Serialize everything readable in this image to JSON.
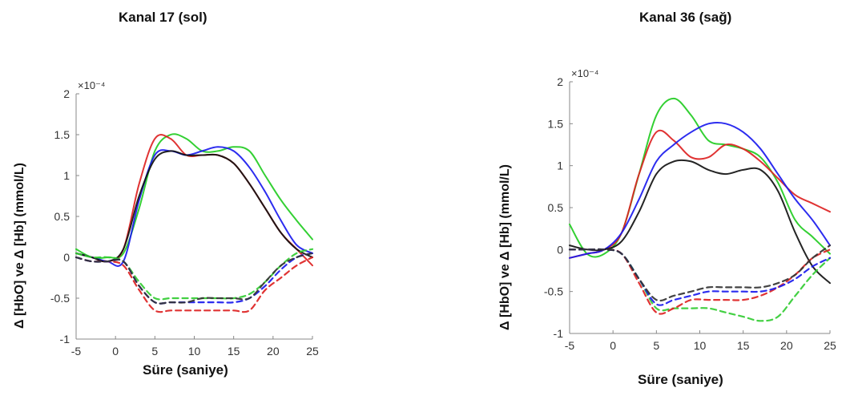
{
  "chart_data": [
    {
      "type": "line",
      "title": "Kanal 17 (sol)",
      "xlabel": "Süre (saniye)",
      "ylabel": "Δ [HbO] ve Δ [Hb] (mmol/L)",
      "y_exponent": "×10⁻⁴",
      "xlim": [
        -5,
        25
      ],
      "ylim": [
        -1,
        2
      ],
      "xticks": [
        -5,
        0,
        5,
        10,
        15,
        20,
        25
      ],
      "yticks": [
        -1,
        -0.5,
        0,
        0.5,
        1,
        1.5,
        2
      ],
      "grid": false,
      "series": [
        {
          "style": "solid",
          "color": "#22cc22",
          "x": [
            -5,
            -3,
            -1,
            1,
            3,
            5,
            7,
            9,
            11,
            13,
            15,
            17,
            19,
            21,
            23,
            25
          ],
          "y": [
            0.1,
            0,
            0,
            0.05,
            0.6,
            1.3,
            1.5,
            1.45,
            1.3,
            1.3,
            1.35,
            1.3,
            1.0,
            0.7,
            0.45,
            0.22
          ]
        },
        {
          "style": "solid",
          "color": "#dd2222",
          "x": [
            -5,
            -3,
            -1,
            1,
            3,
            5,
            7,
            9,
            11,
            13,
            15,
            17,
            19,
            21,
            23,
            25
          ],
          "y": [
            0.05,
            0,
            -0.05,
            0.1,
            0.9,
            1.45,
            1.45,
            1.25,
            1.25,
            1.25,
            1.15,
            0.9,
            0.6,
            0.3,
            0.1,
            -0.1
          ]
        },
        {
          "style": "solid",
          "color": "#1a1aee",
          "x": [
            -5,
            -3,
            -1,
            1,
            3,
            5,
            7,
            9,
            11,
            13,
            15,
            17,
            19,
            21,
            23,
            25
          ],
          "y": [
            0.05,
            0,
            -0.05,
            -0.05,
            0.7,
            1.25,
            1.3,
            1.25,
            1.3,
            1.35,
            1.3,
            1.1,
            0.8,
            0.45,
            0.15,
            0.05
          ]
        },
        {
          "style": "solid",
          "color": "#111111",
          "x": [
            -5,
            -3,
            -1,
            1,
            3,
            5,
            7,
            9,
            11,
            13,
            15,
            17,
            19,
            21,
            23,
            25
          ],
          "y": [
            0.05,
            0,
            -0.05,
            0.1,
            0.75,
            1.2,
            1.3,
            1.25,
            1.25,
            1.25,
            1.15,
            0.9,
            0.6,
            0.3,
            0.1,
            0.0
          ]
        },
        {
          "style": "dashed",
          "color": "#33cc33",
          "x": [
            -5,
            -3,
            -1,
            1,
            3,
            5,
            7,
            9,
            11,
            13,
            15,
            17,
            19,
            21,
            23,
            25
          ],
          "y": [
            0.05,
            0,
            0,
            -0.05,
            -0.3,
            -0.5,
            -0.5,
            -0.5,
            -0.5,
            -0.5,
            -0.5,
            -0.45,
            -0.3,
            -0.1,
            0.05,
            0.1
          ]
        },
        {
          "style": "dashed",
          "color": "#dd2222",
          "x": [
            -5,
            -3,
            -1,
            1,
            3,
            5,
            7,
            9,
            11,
            13,
            15,
            17,
            19,
            21,
            23,
            25
          ],
          "y": [
            0.0,
            -0.05,
            -0.05,
            -0.1,
            -0.4,
            -0.65,
            -0.65,
            -0.65,
            -0.65,
            -0.65,
            -0.65,
            -0.65,
            -0.4,
            -0.25,
            -0.1,
            0.0
          ]
        },
        {
          "style": "dashed",
          "color": "#1a1aee",
          "x": [
            -5,
            -3,
            -1,
            1,
            3,
            5,
            7,
            9,
            11,
            13,
            15,
            17,
            19,
            21,
            23,
            25
          ],
          "y": [
            0.0,
            -0.05,
            -0.05,
            -0.05,
            -0.35,
            -0.55,
            -0.55,
            -0.55,
            -0.55,
            -0.55,
            -0.55,
            -0.5,
            -0.35,
            -0.15,
            0.0,
            0.05
          ]
        },
        {
          "style": "dashed",
          "color": "#333333",
          "x": [
            -5,
            -3,
            -1,
            1,
            3,
            5,
            7,
            9,
            11,
            13,
            15,
            17,
            19,
            21,
            23,
            25
          ],
          "y": [
            0.0,
            -0.05,
            -0.05,
            -0.05,
            -0.35,
            -0.55,
            -0.55,
            -0.55,
            -0.5,
            -0.5,
            -0.5,
            -0.5,
            -0.3,
            -0.1,
            0.0,
            0.05
          ]
        }
      ]
    },
    {
      "type": "line",
      "title": "Kanal 36 (sağ)",
      "xlabel": "Süre (saniye)",
      "ylabel": "Δ [HbO] ve Δ [Hb] (mmol/L)",
      "y_exponent": "×10⁻⁴",
      "xlim": [
        -5,
        25
      ],
      "ylim": [
        -1,
        2
      ],
      "xticks": [
        -5,
        0,
        5,
        10,
        15,
        20,
        25
      ],
      "yticks": [
        -1,
        -0.5,
        0,
        0.5,
        1,
        1.5,
        2
      ],
      "grid": false,
      "series": [
        {
          "style": "solid",
          "color": "#22cc22",
          "x": [
            -5,
            -3,
            -1,
            1,
            3,
            5,
            7,
            9,
            11,
            13,
            15,
            17,
            19,
            21,
            23,
            25
          ],
          "y": [
            0.3,
            -0.05,
            -0.05,
            0.2,
            0.9,
            1.6,
            1.8,
            1.6,
            1.3,
            1.25,
            1.2,
            1.1,
            0.8,
            0.35,
            0.15,
            -0.05
          ]
        },
        {
          "style": "solid",
          "color": "#dd2222",
          "x": [
            -5,
            -3,
            -1,
            1,
            3,
            5,
            7,
            9,
            11,
            13,
            15,
            17,
            19,
            21,
            23,
            25
          ],
          "y": [
            -0.1,
            -0.05,
            0,
            0.2,
            0.9,
            1.4,
            1.3,
            1.1,
            1.1,
            1.25,
            1.2,
            1.05,
            0.85,
            0.65,
            0.55,
            0.45
          ]
        },
        {
          "style": "solid",
          "color": "#1a1aee",
          "x": [
            -5,
            -3,
            -1,
            1,
            3,
            5,
            7,
            9,
            11,
            13,
            15,
            17,
            19,
            21,
            23,
            25
          ],
          "y": [
            -0.1,
            -0.05,
            0,
            0.2,
            0.6,
            1.05,
            1.25,
            1.4,
            1.5,
            1.5,
            1.4,
            1.2,
            0.9,
            0.6,
            0.35,
            0.05
          ]
        },
        {
          "style": "solid",
          "color": "#111111",
          "x": [
            -5,
            -3,
            -1,
            1,
            3,
            5,
            7,
            9,
            11,
            13,
            15,
            17,
            19,
            21,
            23,
            25
          ],
          "y": [
            0.05,
            0,
            0,
            0.1,
            0.45,
            0.9,
            1.05,
            1.05,
            0.95,
            0.9,
            0.95,
            0.95,
            0.7,
            0.2,
            -0.2,
            -0.4
          ]
        },
        {
          "style": "dashed",
          "color": "#33cc33",
          "x": [
            -5,
            -3,
            -1,
            1,
            3,
            5,
            7,
            9,
            11,
            13,
            15,
            17,
            19,
            21,
            23,
            25
          ],
          "y": [
            0.0,
            0,
            0,
            -0.05,
            -0.35,
            -0.7,
            -0.7,
            -0.7,
            -0.7,
            -0.75,
            -0.8,
            -0.85,
            -0.8,
            -0.55,
            -0.3,
            -0.1
          ]
        },
        {
          "style": "dashed",
          "color": "#dd2222",
          "x": [
            -5,
            -3,
            -1,
            1,
            3,
            5,
            7,
            9,
            11,
            13,
            15,
            17,
            19,
            21,
            23,
            25
          ],
          "y": [
            0.0,
            0,
            0,
            -0.05,
            -0.4,
            -0.75,
            -0.7,
            -0.6,
            -0.6,
            -0.6,
            -0.6,
            -0.55,
            -0.45,
            -0.3,
            -0.1,
            0.0
          ]
        },
        {
          "style": "dashed",
          "color": "#1a1aee",
          "x": [
            -5,
            -3,
            -1,
            1,
            3,
            5,
            7,
            9,
            11,
            13,
            15,
            17,
            19,
            21,
            23,
            25
          ],
          "y": [
            0.0,
            0,
            0,
            -0.05,
            -0.35,
            -0.65,
            -0.6,
            -0.55,
            -0.5,
            -0.5,
            -0.5,
            -0.5,
            -0.45,
            -0.35,
            -0.2,
            -0.1
          ]
        },
        {
          "style": "dashed",
          "color": "#333333",
          "x": [
            -5,
            -3,
            -1,
            1,
            3,
            5,
            7,
            9,
            11,
            13,
            15,
            17,
            19,
            21,
            23,
            25
          ],
          "y": [
            0.0,
            0,
            0,
            -0.05,
            -0.35,
            -0.6,
            -0.55,
            -0.5,
            -0.45,
            -0.45,
            -0.45,
            -0.45,
            -0.4,
            -0.3,
            -0.1,
            0.05
          ]
        }
      ]
    }
  ]
}
